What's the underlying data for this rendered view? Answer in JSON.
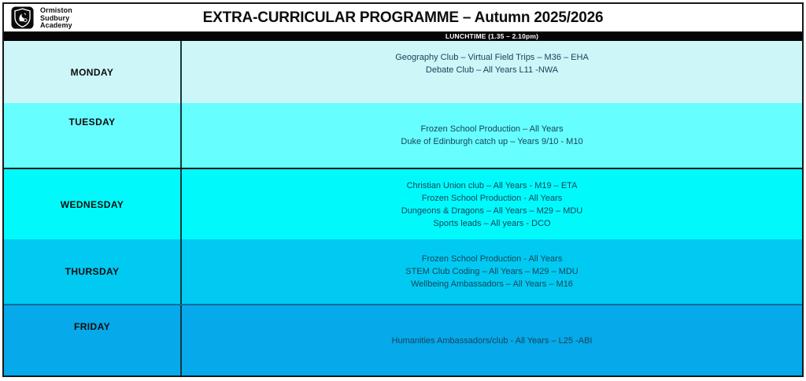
{
  "header": {
    "logo_icon": "school-crest-shield-icon",
    "school_name_lines": [
      "Ormiston",
      "Sudbury",
      "Academy"
    ],
    "title": "EXTRA-CURRICULAR PROGRAMME – Autumn 2025/2026"
  },
  "lunchtime_bar": {
    "label": "LUNCHTIME (1.35 – 2.10pm)"
  },
  "schedule": {
    "rows": [
      {
        "day": "MONDAY",
        "color": "#CDF6F9",
        "activities": [
          "Geography Club – Virtual Field Trips – M36 – EHA",
          "Debate Club – All Years L11 -NWA"
        ]
      },
      {
        "day": "TUESDAY",
        "color": "#66FEFE",
        "activities": [
          "Frozen School Production – All Years",
          "Duke of Edinburgh catch up – Years 9/10 - M10"
        ]
      },
      {
        "day": "WEDNESDAY",
        "color": "#00FAFC",
        "activities": [
          "Christian Union club – All Years - M19 – ETA",
          "Frozen School Production - All Years",
          "Dungeons & Dragons – All Years – M29 – MDU",
          "Sports leads – All years - DCO"
        ]
      },
      {
        "day": "THURSDAY",
        "color": "#00CAF2",
        "activities": [
          "Frozen School Production - All Years",
          "STEM Club Coding – All Years – M29 – MDU",
          "Wellbeing Ambassadors – All Years – M16"
        ]
      },
      {
        "day": "FRIDAY",
        "color": "#06A9E9",
        "activities": [
          "Humanities Ambassadors/club - All Years – L25 -ABI"
        ]
      }
    ]
  },
  "colors": {
    "activity_text": "#16445A",
    "day_text": "#0D0D0D",
    "bar_background": "#050505",
    "bar_text": "#FFFFFF",
    "column_divider": "#16383D",
    "wednesday_top_border": "#101C1D",
    "friday_top_border": "#076D99",
    "outer_border": "#14181A"
  }
}
